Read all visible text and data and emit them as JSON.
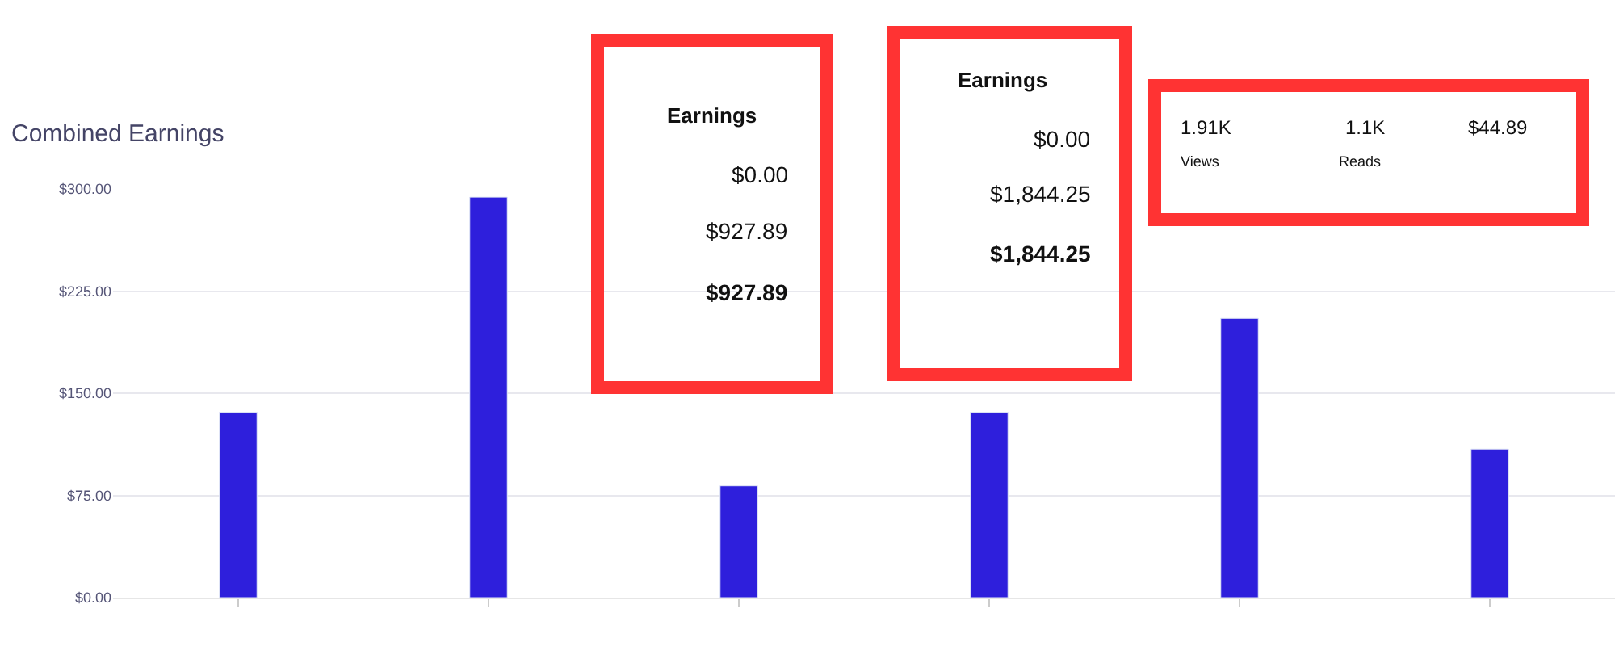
{
  "chart_data": {
    "type": "bar",
    "title": "Combined Earnings",
    "categories": [
      null,
      null,
      null,
      null,
      null,
      null
    ],
    "values": [
      136,
      294,
      82,
      136,
      205,
      109
    ],
    "color": "#2e1fdc",
    "ylim": [
      0,
      300
    ],
    "yticks": [
      {
        "value": 0,
        "label": "$0.00"
      },
      {
        "value": 75,
        "label": "$75.00"
      },
      {
        "value": 150,
        "label": "$150.00"
      },
      {
        "value": 225,
        "label": "$225.00"
      },
      {
        "value": 300,
        "label": "$300.00"
      }
    ],
    "grid": "y",
    "tick_labels": "y",
    "annotations": [
      "Earnings",
      "$0.00",
      "$927.89",
      "$927.89",
      "Earnings",
      "$0.00",
      "$1,844.25",
      "$1,844.25",
      "1.91K",
      "Views",
      "1.1K",
      "Reads",
      "$44.89"
    ]
  }
}
